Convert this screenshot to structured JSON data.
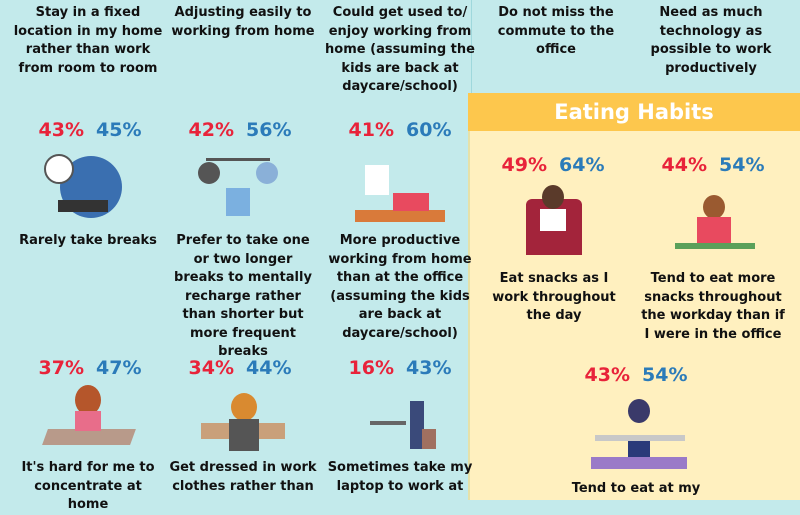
{
  "colors": {
    "wfh_stat": "#e8233a",
    "office_stat": "#2b7bb9",
    "section_bar": "#fdc74d"
  },
  "left": {
    "top_row": [
      {
        "text": "Stay in a fixed location in my home rather than work from room to room"
      },
      {
        "text": "Adjusting easily to working from home"
      },
      {
        "text": "Could get used to/ enjoy working from home (assuming the kids are back at daycare/school)"
      }
    ],
    "middle_row": [
      {
        "a": "43%",
        "b": "45%",
        "text": "Rarely take breaks"
      },
      {
        "a": "42%",
        "b": "56%",
        "text": "Prefer to take one or two longer breaks to mentally recharge rather than shorter but more frequent breaks"
      },
      {
        "a": "41%",
        "b": "60%",
        "text": "More productive working from home than at the office (assuming the kids are back at daycare/school)"
      }
    ],
    "bottom_row": [
      {
        "a": "37%",
        "b": "47%",
        "text": "It's hard for me to concentrate at home"
      },
      {
        "a": "34%",
        "b": "44%",
        "text": "Get dressed in work clothes rather than"
      },
      {
        "a": "16%",
        "b": "43%",
        "text": "Sometimes take my laptop to work at"
      }
    ]
  },
  "right": {
    "top_row": [
      {
        "text": "Do not miss the commute to the office"
      },
      {
        "text": "Need as much technology as possible to work productively"
      }
    ],
    "section_title": "Eating Habits",
    "eating": [
      {
        "a": "49%",
        "b": "64%",
        "text": "Eat snacks as I work throughout the day"
      },
      {
        "a": "44%",
        "b": "54%",
        "text": "Tend to eat more snacks throughout the workday than if I were in the office"
      },
      {
        "a": "43%",
        "b": "54%",
        "text": "Tend to eat at my"
      }
    ]
  }
}
